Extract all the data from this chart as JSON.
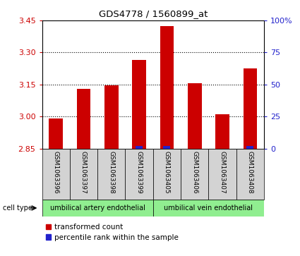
{
  "title": "GDS4778 / 1560899_at",
  "samples": [
    "GSM1063396",
    "GSM1063397",
    "GSM1063398",
    "GSM1063399",
    "GSM1063405",
    "GSM1063406",
    "GSM1063407",
    "GSM1063408"
  ],
  "transformed_counts": [
    2.99,
    3.13,
    3.145,
    3.265,
    3.425,
    3.155,
    3.01,
    3.225
  ],
  "percentile_ranks": [
    0,
    0,
    0,
    4,
    5,
    0,
    0,
    3
  ],
  "ylim_left": [
    2.85,
    3.45
  ],
  "yticks_left": [
    2.85,
    3.0,
    3.15,
    3.3,
    3.45
  ],
  "ylim_right": [
    0,
    100
  ],
  "yticks_right": [
    0,
    25,
    50,
    75,
    100
  ],
  "ytick_labels_right": [
    "0",
    "25",
    "50",
    "75",
    "100%"
  ],
  "bar_color_red": "#cc0000",
  "bar_color_blue": "#2222cc",
  "cell_type_groups": [
    {
      "label": "umbilical artery endothelial",
      "span": 4
    },
    {
      "label": "umbilical vein endothelial",
      "span": 4
    }
  ],
  "cell_type_label": "cell type",
  "legend_red": "transformed count",
  "legend_blue": "percentile rank within the sample",
  "bar_width": 0.5,
  "blue_bar_width": 0.25,
  "baseline": 2.85,
  "tick_color_left": "#cc0000",
  "tick_color_right": "#2222cc",
  "sample_box_color": "#d3d3d3",
  "cell_type_color": "#90ee90"
}
